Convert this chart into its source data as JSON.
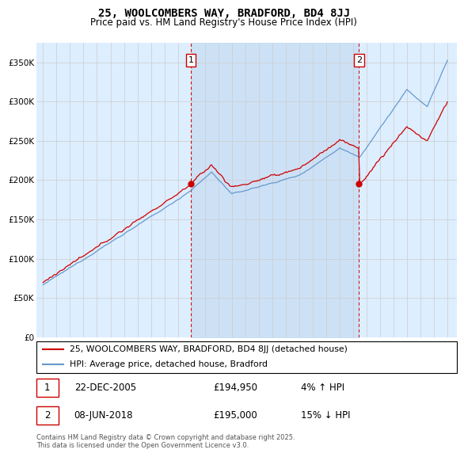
{
  "title": "25, WOOLCOMBERS WAY, BRADFORD, BD4 8JJ",
  "subtitle": "Price paid vs. HM Land Registry's House Price Index (HPI)",
  "hpi_label": "HPI: Average price, detached house, Bradford",
  "property_label": "25, WOOLCOMBERS WAY, BRADFORD, BD4 8JJ (detached house)",
  "annotation1": {
    "num": "1",
    "date": "22-DEC-2005",
    "price": "£194,950",
    "pct": "4% ↑ HPI"
  },
  "annotation2": {
    "num": "2",
    "date": "08-JUN-2018",
    "price": "£195,000",
    "pct": "15% ↓ HPI"
  },
  "sale1_year": 2005.97,
  "sale2_year": 2018.44,
  "sale1_price": 194950,
  "sale2_price": 195000,
  "ylim": [
    0,
    375000
  ],
  "xlim_start": 1994.5,
  "xlim_end": 2025.7,
  "bg_color": "#ddeeff",
  "shade_color": "#cce0f5",
  "line_color_red": "#cc0000",
  "line_color_blue": "#6699cc",
  "grid_color": "#cccccc",
  "footer": "Contains HM Land Registry data © Crown copyright and database right 2025.\nThis data is licensed under the Open Government Licence v3.0.",
  "yticks": [
    0,
    50000,
    100000,
    150000,
    200000,
    250000,
    300000,
    350000
  ],
  "ytick_labels": [
    "£0",
    "£50K",
    "£100K",
    "£150K",
    "£200K",
    "£250K",
    "£300K",
    "£350K"
  ],
  "xticks": [
    1995,
    1996,
    1997,
    1998,
    1999,
    2000,
    2001,
    2002,
    2003,
    2004,
    2005,
    2006,
    2007,
    2008,
    2009,
    2010,
    2011,
    2012,
    2013,
    2014,
    2015,
    2016,
    2017,
    2018,
    2019,
    2020,
    2021,
    2022,
    2023,
    2024,
    2025
  ]
}
